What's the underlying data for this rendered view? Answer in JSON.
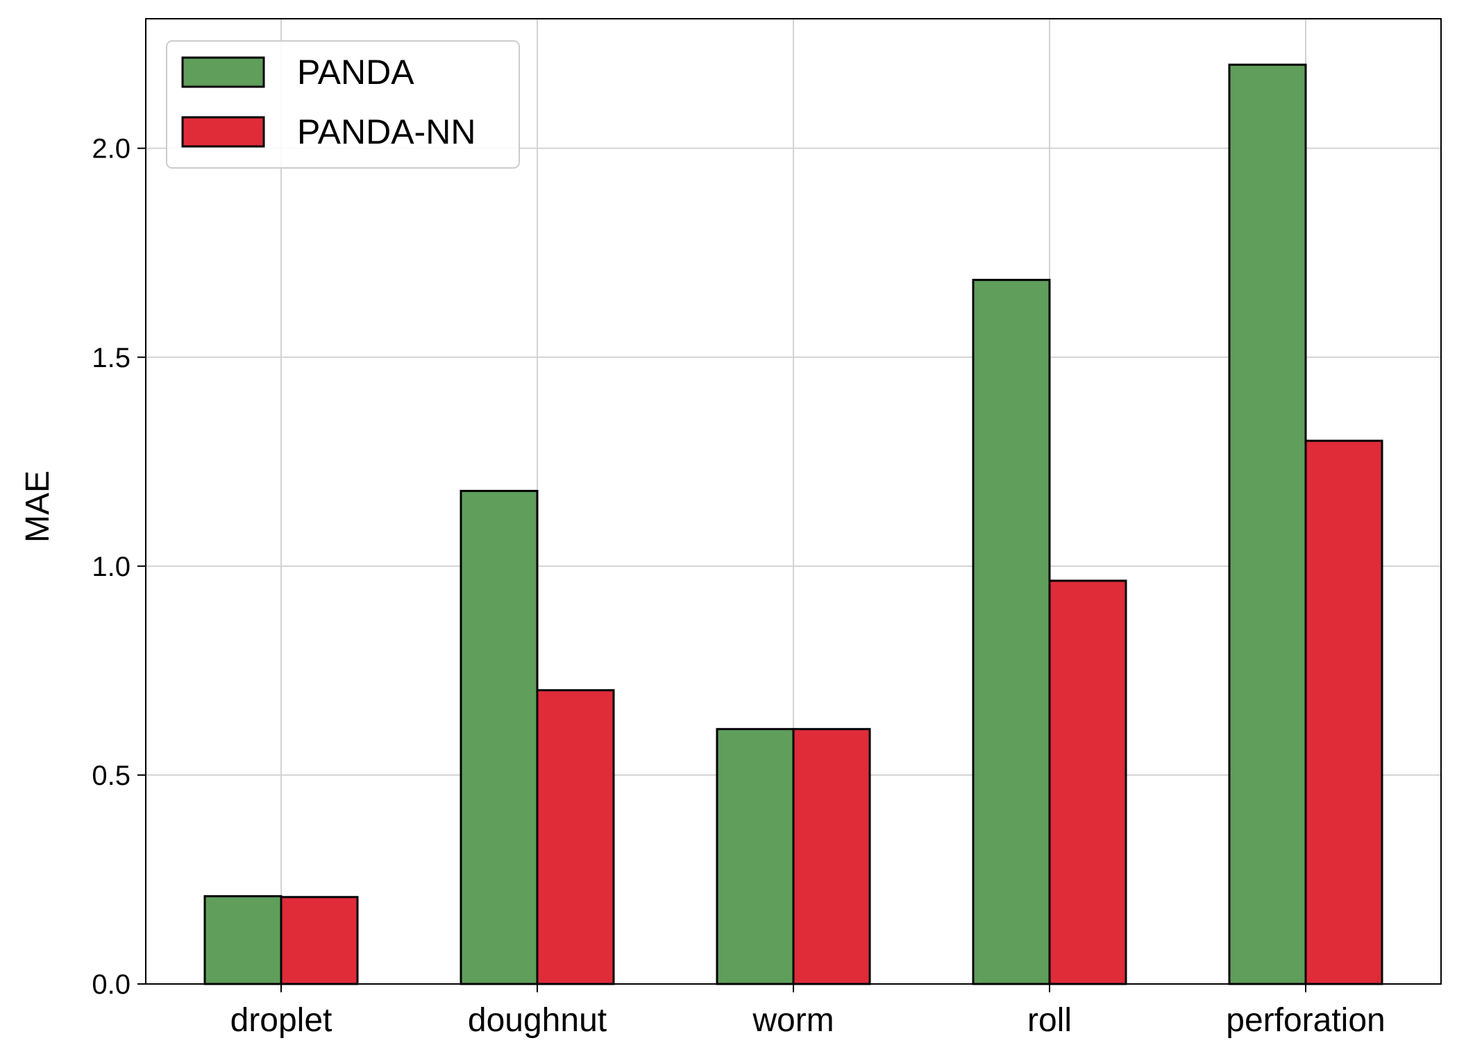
{
  "chart_data": {
    "type": "bar",
    "title": "",
    "xlabel": "",
    "ylabel": "MAE",
    "categories": [
      "droplet",
      "doughnut",
      "worm",
      "roll",
      "perforation"
    ],
    "series": [
      {
        "name": "PANDA",
        "color": "#5f9e5b",
        "values": [
          0.21,
          1.18,
          0.61,
          1.685,
          2.2
        ]
      },
      {
        "name": "PANDA-NN",
        "color": "#df2c38",
        "values": [
          0.208,
          0.703,
          0.61,
          0.965,
          1.3
        ]
      }
    ],
    "ylim": [
      0,
      2.31
    ],
    "yticks": [
      "0.0",
      "0.5",
      "1.0",
      "1.5",
      "2.0"
    ],
    "grid": true,
    "legend_position": "top-left"
  }
}
